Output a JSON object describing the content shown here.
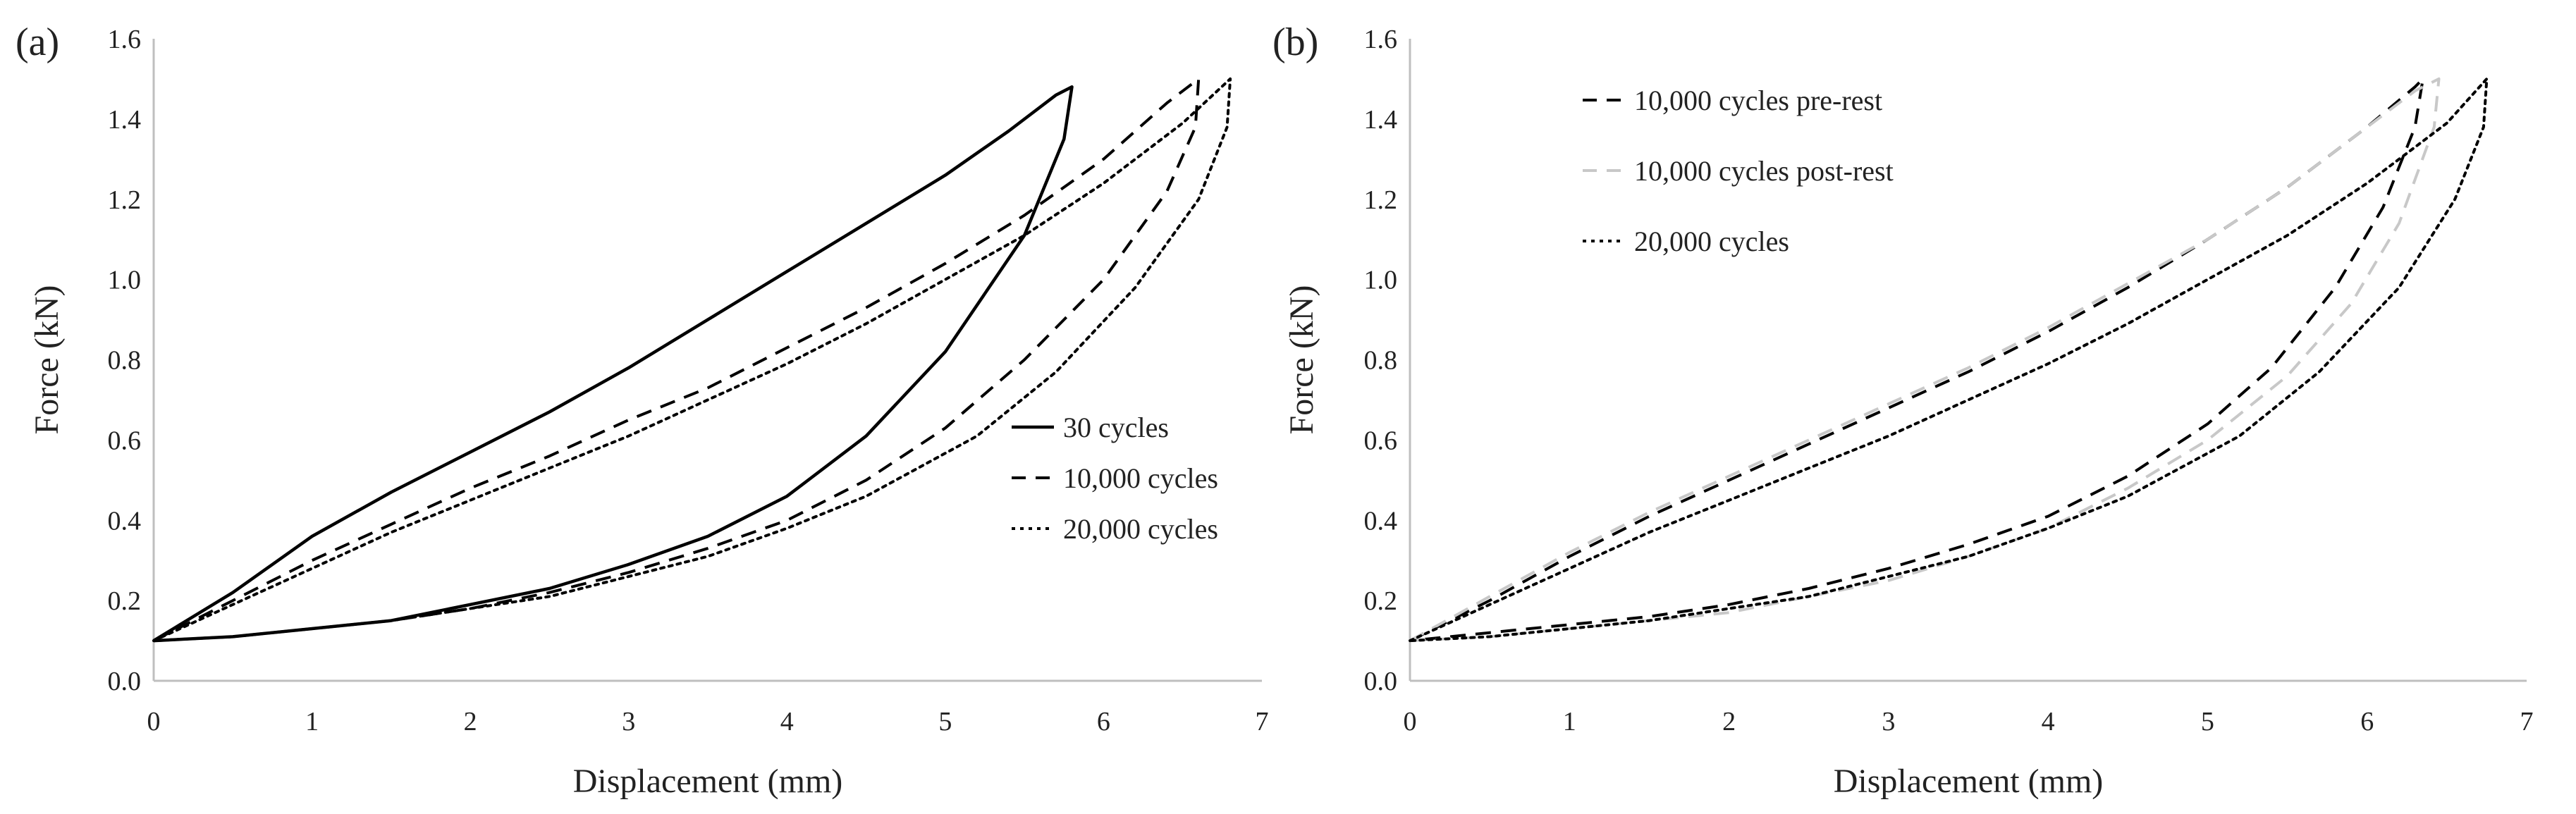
{
  "chart_data": [
    {
      "type": "line",
      "panel_label": "(a)",
      "xlabel": "Displacement (mm)",
      "ylabel": "Force (kN)",
      "xlim": [
        0,
        7
      ],
      "ylim": [
        0,
        1.6
      ],
      "xticks": [
        "0",
        "1",
        "2",
        "3",
        "4",
        "5",
        "6",
        "7"
      ],
      "yticks": [
        "0.0",
        "0.2",
        "0.4",
        "0.6",
        "0.8",
        "1.0",
        "1.2",
        "1.4",
        "1.6"
      ],
      "grid": false,
      "legend_position": "right",
      "series": [
        {
          "name": "30 cycles",
          "style": "solid",
          "color": "#000000",
          "points": [
            [
              0.0,
              0.1
            ],
            [
              0.5,
              0.22
            ],
            [
              1.0,
              0.36
            ],
            [
              1.5,
              0.47
            ],
            [
              2.0,
              0.57
            ],
            [
              2.5,
              0.67
            ],
            [
              3.0,
              0.78
            ],
            [
              3.5,
              0.9
            ],
            [
              4.0,
              1.02
            ],
            [
              4.5,
              1.14
            ],
            [
              5.0,
              1.26
            ],
            [
              5.4,
              1.37
            ],
            [
              5.7,
              1.46
            ],
            [
              5.8,
              1.48
            ],
            [
              5.75,
              1.35
            ],
            [
              5.5,
              1.11
            ],
            [
              5.0,
              0.82
            ],
            [
              4.5,
              0.61
            ],
            [
              4.0,
              0.46
            ],
            [
              3.5,
              0.36
            ],
            [
              3.0,
              0.29
            ],
            [
              2.5,
              0.23
            ],
            [
              2.0,
              0.19
            ],
            [
              1.5,
              0.15
            ],
            [
              1.0,
              0.13
            ],
            [
              0.5,
              0.11
            ],
            [
              0.0,
              0.1
            ]
          ]
        },
        {
          "name": "10,000 cycles",
          "style": "dashed",
          "color": "#000000",
          "points": [
            [
              0.0,
              0.1
            ],
            [
              0.5,
              0.2
            ],
            [
              1.0,
              0.3
            ],
            [
              1.5,
              0.39
            ],
            [
              2.0,
              0.48
            ],
            [
              2.5,
              0.56
            ],
            [
              3.0,
              0.65
            ],
            [
              3.5,
              0.73
            ],
            [
              4.0,
              0.83
            ],
            [
              4.5,
              0.93
            ],
            [
              5.0,
              1.04
            ],
            [
              5.5,
              1.16
            ],
            [
              6.0,
              1.3
            ],
            [
              6.4,
              1.44
            ],
            [
              6.6,
              1.5
            ],
            [
              6.58,
              1.38
            ],
            [
              6.4,
              1.22
            ],
            [
              6.0,
              1.0
            ],
            [
              5.5,
              0.8
            ],
            [
              5.0,
              0.63
            ],
            [
              4.5,
              0.5
            ],
            [
              4.0,
              0.4
            ],
            [
              3.5,
              0.33
            ],
            [
              3.0,
              0.27
            ],
            [
              2.5,
              0.22
            ],
            [
              2.0,
              0.18
            ],
            [
              1.5,
              0.15
            ],
            [
              1.0,
              0.13
            ],
            [
              0.5,
              0.11
            ],
            [
              0.0,
              0.1
            ]
          ]
        },
        {
          "name": "20,000 cycles",
          "style": "dotted",
          "color": "#000000",
          "points": [
            [
              0.0,
              0.1
            ],
            [
              0.5,
              0.19
            ],
            [
              1.0,
              0.28
            ],
            [
              1.5,
              0.37
            ],
            [
              2.0,
              0.45
            ],
            [
              2.5,
              0.53
            ],
            [
              3.0,
              0.61
            ],
            [
              3.5,
              0.7
            ],
            [
              4.0,
              0.79
            ],
            [
              4.5,
              0.89
            ],
            [
              5.0,
              1.0
            ],
            [
              5.5,
              1.11
            ],
            [
              6.0,
              1.24
            ],
            [
              6.5,
              1.39
            ],
            [
              6.8,
              1.5
            ],
            [
              6.78,
              1.38
            ],
            [
              6.6,
              1.2
            ],
            [
              6.2,
              0.98
            ],
            [
              5.7,
              0.77
            ],
            [
              5.2,
              0.61
            ],
            [
              4.5,
              0.46
            ],
            [
              4.0,
              0.38
            ],
            [
              3.5,
              0.31
            ],
            [
              3.0,
              0.26
            ],
            [
              2.5,
              0.21
            ],
            [
              2.0,
              0.18
            ],
            [
              1.5,
              0.15
            ],
            [
              1.0,
              0.13
            ],
            [
              0.5,
              0.11
            ],
            [
              0.0,
              0.1
            ]
          ]
        }
      ]
    },
    {
      "type": "line",
      "panel_label": "(b)",
      "xlabel": "Displacement (mm)",
      "ylabel": "Force (kN)",
      "xlim": [
        0,
        7
      ],
      "ylim": [
        0,
        1.6
      ],
      "xticks": [
        "0",
        "1",
        "2",
        "3",
        "4",
        "5",
        "6",
        "7"
      ],
      "yticks": [
        "0.0",
        "0.2",
        "0.4",
        "0.6",
        "0.8",
        "1.0",
        "1.2",
        "1.4",
        "1.6"
      ],
      "grid": false,
      "legend_position": "top-left",
      "series": [
        {
          "name": "10,000 cycles pre-rest",
          "style": "dashed",
          "color": "#000000",
          "points": [
            [
              0.0,
              0.1
            ],
            [
              0.5,
              0.2
            ],
            [
              1.0,
              0.31
            ],
            [
              1.5,
              0.41
            ],
            [
              2.0,
              0.5
            ],
            [
              2.5,
              0.59
            ],
            [
              3.0,
              0.68
            ],
            [
              3.5,
              0.77
            ],
            [
              4.0,
              0.87
            ],
            [
              4.5,
              0.98
            ],
            [
              5.0,
              1.1
            ],
            [
              5.5,
              1.23
            ],
            [
              6.0,
              1.38
            ],
            [
              6.3,
              1.48
            ],
            [
              6.35,
              1.5
            ],
            [
              6.3,
              1.38
            ],
            [
              6.1,
              1.18
            ],
            [
              5.8,
              0.98
            ],
            [
              5.4,
              0.78
            ],
            [
              5.0,
              0.64
            ],
            [
              4.5,
              0.51
            ],
            [
              4.0,
              0.41
            ],
            [
              3.5,
              0.34
            ],
            [
              3.0,
              0.28
            ],
            [
              2.5,
              0.23
            ],
            [
              2.0,
              0.19
            ],
            [
              1.5,
              0.16
            ],
            [
              1.0,
              0.14
            ],
            [
              0.5,
              0.12
            ],
            [
              0.0,
              0.1
            ]
          ]
        },
        {
          "name": "10,000 cycles post-rest",
          "style": "dashed",
          "color": "#c8c8c8",
          "points": [
            [
              0.0,
              0.1
            ],
            [
              0.5,
              0.21
            ],
            [
              1.0,
              0.32
            ],
            [
              1.5,
              0.42
            ],
            [
              2.0,
              0.51
            ],
            [
              2.5,
              0.6
            ],
            [
              3.0,
              0.69
            ],
            [
              3.5,
              0.78
            ],
            [
              4.0,
              0.88
            ],
            [
              4.5,
              0.99
            ],
            [
              5.0,
              1.1
            ],
            [
              5.5,
              1.23
            ],
            [
              6.0,
              1.38
            ],
            [
              6.3,
              1.47
            ],
            [
              6.45,
              1.5
            ],
            [
              6.42,
              1.38
            ],
            [
              6.2,
              1.14
            ],
            [
              5.9,
              0.94
            ],
            [
              5.5,
              0.76
            ],
            [
              5.0,
              0.6
            ],
            [
              4.5,
              0.48
            ],
            [
              4.0,
              0.38
            ],
            [
              3.5,
              0.31
            ],
            [
              3.0,
              0.25
            ],
            [
              2.5,
              0.21
            ],
            [
              2.0,
              0.17
            ],
            [
              1.5,
              0.15
            ],
            [
              1.0,
              0.13
            ],
            [
              0.5,
              0.11
            ],
            [
              0.0,
              0.1
            ]
          ]
        },
        {
          "name": "20,000 cycles",
          "style": "dotted",
          "color": "#000000",
          "points": [
            [
              0.0,
              0.1
            ],
            [
              0.5,
              0.19
            ],
            [
              1.0,
              0.28
            ],
            [
              1.5,
              0.37
            ],
            [
              2.0,
              0.45
            ],
            [
              2.5,
              0.53
            ],
            [
              3.0,
              0.61
            ],
            [
              3.5,
              0.7
            ],
            [
              4.0,
              0.79
            ],
            [
              4.5,
              0.89
            ],
            [
              5.0,
              1.0
            ],
            [
              5.5,
              1.11
            ],
            [
              6.0,
              1.24
            ],
            [
              6.5,
              1.39
            ],
            [
              6.75,
              1.5
            ],
            [
              6.73,
              1.38
            ],
            [
              6.55,
              1.2
            ],
            [
              6.2,
              0.98
            ],
            [
              5.7,
              0.77
            ],
            [
              5.2,
              0.61
            ],
            [
              4.5,
              0.46
            ],
            [
              4.0,
              0.38
            ],
            [
              3.5,
              0.31
            ],
            [
              3.0,
              0.26
            ],
            [
              2.5,
              0.21
            ],
            [
              2.0,
              0.18
            ],
            [
              1.5,
              0.15
            ],
            [
              1.0,
              0.13
            ],
            [
              0.5,
              0.11
            ],
            [
              0.0,
              0.1
            ]
          ]
        }
      ]
    }
  ]
}
